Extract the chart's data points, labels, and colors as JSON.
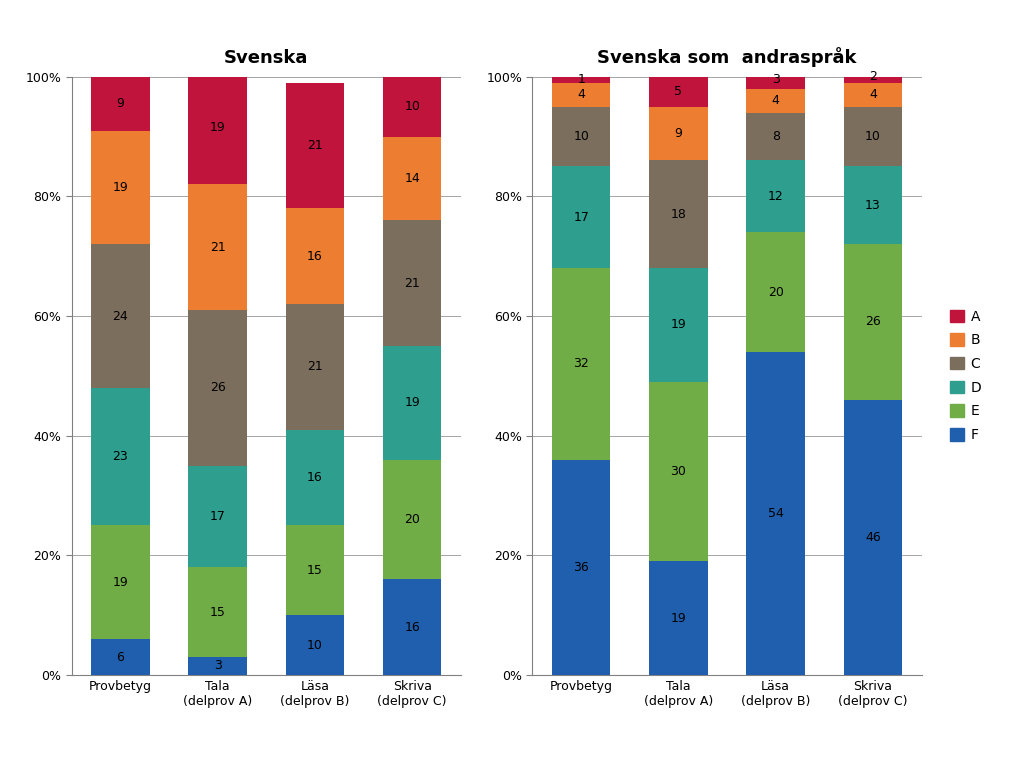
{
  "svenska": {
    "title": "Svenska",
    "categories": [
      "Provbetyg",
      "Tala\n(delprov A)",
      "Läsa\n(delprov B)",
      "Skriva\n(delprov C)"
    ],
    "F": [
      6,
      3,
      10,
      16
    ],
    "E": [
      19,
      15,
      15,
      20
    ],
    "D": [
      23,
      17,
      16,
      19
    ],
    "C": [
      24,
      26,
      21,
      21
    ],
    "B": [
      19,
      21,
      16,
      14
    ],
    "A": [
      9,
      19,
      21,
      10
    ]
  },
  "andrasprak": {
    "title": "Svenska som  andraspråk",
    "categories": [
      "Provbetyg",
      "Tala\n(delprov A)",
      "Läsa\n(delprov B)",
      "Skriva\n(delprov C)"
    ],
    "F": [
      36,
      19,
      54,
      46
    ],
    "E": [
      32,
      30,
      20,
      26
    ],
    "D": [
      17,
      19,
      12,
      13
    ],
    "C": [
      10,
      18,
      8,
      10
    ],
    "B": [
      4,
      9,
      4,
      4
    ],
    "A": [
      1,
      5,
      3,
      2
    ]
  },
  "colors": {
    "F": "#1F5FAD",
    "E": "#70AD47",
    "D": "#2E9E8E",
    "C": "#7B6E5D",
    "B": "#ED7D31",
    "A": "#C0143C"
  },
  "grades": [
    "F",
    "E",
    "D",
    "C",
    "B",
    "A"
  ],
  "bar_width": 0.6,
  "ylim": [
    0,
    100
  ],
  "yticks": [
    0,
    20,
    40,
    60,
    80,
    100
  ],
  "ytick_labels": [
    "0%",
    "20%",
    "40%",
    "60%",
    "80%",
    "100%"
  ],
  "legend_labels": [
    "A",
    "B",
    "C",
    "D",
    "E",
    "F"
  ],
  "text_fontsize": 9,
  "title_fontsize": 13,
  "axis_label_fontsize": 9
}
